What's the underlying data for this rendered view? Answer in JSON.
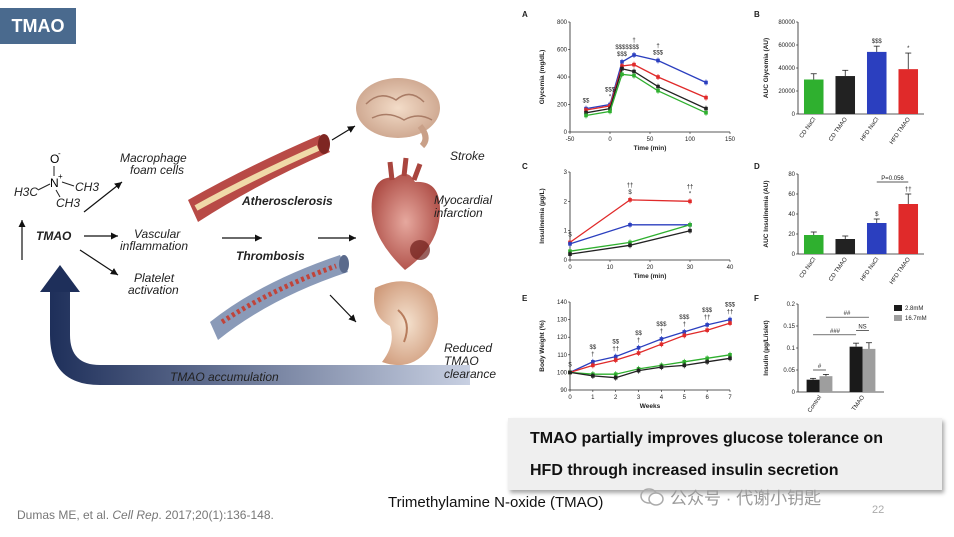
{
  "badge": "TMAO",
  "diagram": {
    "formula": {
      "o": "O",
      "minus": "-",
      "n": "N",
      "plus": "+",
      "ch3_left": "H3C",
      "ch3_right": "CH3",
      "ch3_bottom": "CH3"
    },
    "tmao_label": "TMAO",
    "macrophage": [
      "Macrophage",
      "foam cells"
    ],
    "vascular": [
      "Vascular",
      "inflammation"
    ],
    "platelet": [
      "Platelet",
      "activation"
    ],
    "atherosclerosis": "Atherosclerosis",
    "thrombosis": "Thrombosis",
    "stroke": "Stroke",
    "mi": [
      "Myocardial",
      "infarction"
    ],
    "reduced": [
      "Reduced",
      "TMAO",
      "clearance"
    ],
    "accumulation": "TMAO accumulation"
  },
  "panels": {
    "A": {
      "label": "A",
      "ylabel": "Glycemia (mg/dL)",
      "xlabel": "Time (min)"
    },
    "B": {
      "label": "B",
      "ylabel": "AUC Glycemia (AU)"
    },
    "C": {
      "label": "C",
      "ylabel": "Insulinemia (µg/L)",
      "xlabel": "Time (min)"
    },
    "D": {
      "label": "D",
      "ylabel": "AUC Insulinemia (AU)",
      "pval": "P=0.056"
    },
    "E": {
      "label": "E",
      "ylabel": "Body Weight (%)",
      "xlabel": "Weeks"
    },
    "F": {
      "label": "F",
      "ylabel": "Insulin (µg/L/islet)",
      "legend": [
        "2.8mM",
        "16.7mM"
      ]
    }
  },
  "chart_data": [
    {
      "type": "line",
      "panel": "A",
      "xlabel": "Time (min)",
      "ylabel": "Glycemia (mg/dL)",
      "x": [
        -30,
        0,
        15,
        30,
        60,
        120
      ],
      "xticks": [
        -50,
        0,
        50,
        100,
        150
      ],
      "xlim": [
        -50,
        150
      ],
      "ylim": [
        0,
        800
      ],
      "yticks": [
        0,
        200,
        400,
        600,
        800
      ],
      "series": [
        {
          "color": "#2b3fbf",
          "values": [
            170,
            200,
            510,
            560,
            520,
            360
          ]
        },
        {
          "color": "#e02a2a",
          "values": [
            160,
            190,
            480,
            490,
            400,
            250
          ]
        },
        {
          "color": "#222222",
          "values": [
            140,
            170,
            460,
            440,
            330,
            170
          ]
        },
        {
          "color": "#2fb02f",
          "values": [
            120,
            150,
            420,
            410,
            300,
            140
          ]
        }
      ],
      "annotations": [
        "$$",
        "*",
        "$$$",
        "$$$",
        "$$$$",
        "$$$",
        "†",
        "$$$",
        "†"
      ]
    },
    {
      "type": "bar",
      "panel": "B",
      "ylabel": "AUC Glycemia (AU)",
      "categories": [
        "CD NaCl",
        "CD TMAO",
        "HFD NaCl",
        "HFD TMAO"
      ],
      "values": [
        30000,
        33000,
        54000,
        39000
      ],
      "errors": [
        5000,
        5000,
        5000,
        14000
      ],
      "colors": [
        "#2fb02f",
        "#222222",
        "#2b3fbf",
        "#e02a2a"
      ],
      "ylim": [
        0,
        80000
      ],
      "yticks": [
        0,
        20000,
        40000,
        60000,
        80000
      ],
      "annotations": [
        "$$$",
        "*"
      ]
    },
    {
      "type": "line",
      "panel": "C",
      "xlabel": "Time (min)",
      "ylabel": "Insulinemia (µg/L)",
      "x": [
        0,
        15,
        30
      ],
      "xticks": [
        0,
        10,
        20,
        30,
        40
      ],
      "xlim": [
        0,
        40
      ],
      "ylim": [
        0,
        3
      ],
      "yticks": [
        0,
        1,
        2,
        3
      ],
      "series": [
        {
          "color": "#e02a2a",
          "values": [
            0.6,
            2.05,
            2.0
          ]
        },
        {
          "color": "#2b3fbf",
          "values": [
            0.55,
            1.2,
            1.2
          ]
        },
        {
          "color": "#2fb02f",
          "values": [
            0.3,
            0.6,
            1.2
          ]
        },
        {
          "color": "#222222",
          "values": [
            0.2,
            0.5,
            1.0
          ]
        }
      ],
      "annotations": [
        "$",
        "$",
        "††",
        "*",
        "††"
      ]
    },
    {
      "type": "bar",
      "panel": "D",
      "ylabel": "AUC Insulinemia (AU)",
      "categories": [
        "CD NaCl",
        "CD TMAO",
        "HFD NaCl",
        "HFD TMAO"
      ],
      "values": [
        19,
        15,
        31,
        50
      ],
      "errors": [
        3,
        3,
        4,
        10
      ],
      "colors": [
        "#2fb02f",
        "#222222",
        "#2b3fbf",
        "#e02a2a"
      ],
      "ylim": [
        0,
        80
      ],
      "yticks": [
        0,
        20,
        40,
        60,
        80
      ],
      "annotations": [
        "$",
        "††",
        "P=0.056"
      ]
    },
    {
      "type": "line",
      "panel": "E",
      "xlabel": "Weeks",
      "ylabel": "Body Weight (%)",
      "x": [
        0,
        1,
        2,
        3,
        4,
        5,
        6,
        7
      ],
      "xticks": [
        0,
        1,
        2,
        3,
        4,
        5,
        6,
        7
      ],
      "xlim": [
        0,
        7
      ],
      "ylim": [
        90,
        140
      ],
      "yticks": [
        90,
        100,
        110,
        120,
        130,
        140
      ],
      "series": [
        {
          "color": "#2b3fbf",
          "values": [
            100,
            106,
            109,
            114,
            119,
            123,
            127,
            130
          ]
        },
        {
          "color": "#e02a2a",
          "values": [
            100,
            104,
            107,
            111,
            116,
            121,
            124,
            128
          ]
        },
        {
          "color": "#2fb02f",
          "values": [
            100,
            99,
            99,
            102,
            104,
            106,
            108,
            110
          ]
        },
        {
          "color": "#222222",
          "values": [
            100,
            98,
            97,
            101,
            103,
            104,
            106,
            108
          ]
        }
      ],
      "annotations": [
        "$",
        "†",
        "$$",
        "††",
        "$$",
        "†",
        "$$",
        "†",
        "$$$",
        "†",
        "$$$",
        "††",
        "$$$",
        "††",
        "$$$",
        "††"
      ]
    },
    {
      "type": "bar",
      "panel": "F",
      "ylabel": "Insulin (µg/L/islet)",
      "categories": [
        "Control",
        "TMAO"
      ],
      "series": [
        {
          "name": "2.8mM",
          "color": "#1a1a1a",
          "values": [
            0.028,
            0.103
          ],
          "errors": [
            0.003,
            0.008
          ]
        },
        {
          "name": "16.7mM",
          "color": "#9e9e9e",
          "values": [
            0.036,
            0.098
          ],
          "errors": [
            0.004,
            0.014
          ]
        }
      ],
      "ylim": [
        0,
        0.2
      ],
      "yticks": [
        0.0,
        0.05,
        0.1,
        0.15,
        0.2
      ],
      "annotations": [
        "#",
        "###",
        "NS",
        "##"
      ]
    }
  ],
  "conclusion": {
    "line1": "TMAO partially improves glucose tolerance on",
    "line2": "HFD through increased insulin secretion"
  },
  "caption": "Trimethylamine N-oxide (TMAO)",
  "citation": {
    "authors": "Dumas ME, et al. ",
    "journal": "Cell Rep",
    "rest": ". 2017;20(1):136-148."
  },
  "watermark": "公众号 · 代谢小钥匙",
  "page_number": "22"
}
